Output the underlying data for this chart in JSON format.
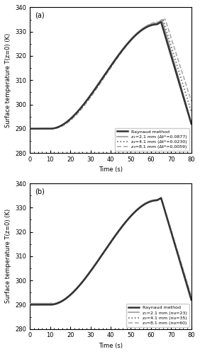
{
  "title_a": "(a)",
  "title_b": "(b)",
  "xlabel": "Time (s)",
  "ylabel": "Surface temperature T(z=0) (K)",
  "xlim": [
    0,
    80
  ],
  "ylim": [
    280,
    340
  ],
  "yticks": [
    280,
    290,
    300,
    310,
    320,
    330,
    340
  ],
  "xticks": [
    0,
    10,
    20,
    30,
    40,
    50,
    60,
    70,
    80
  ],
  "legend_a": [
    "Raynaud method",
    "z₁=2.1 mm (Δt*=0.0877)",
    "z₂=4.1 mm (Δt*=0.0230)",
    "z₃=8.1 mm (Δt*=0.0059)"
  ],
  "legend_b": [
    "Raynaud method",
    "z₁=2.1 mm (nᴜ=23)",
    "z₂=4.1 mm (nᴜ=35)",
    "z₃=8.1 mm (nᴜ=60)"
  ],
  "raynaud_color": "#333333",
  "z1_color": "#999999",
  "z2_color": "#666666",
  "z3_color": "#aaaaaa",
  "background_color": "#ffffff"
}
